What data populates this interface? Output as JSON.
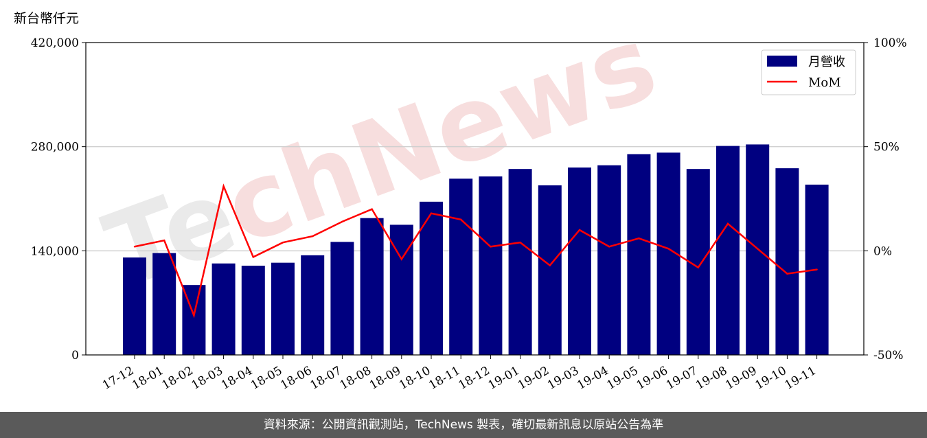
{
  "chart_data": {
    "type": "bar",
    "ylabel": "新台幣仟元",
    "y_ticks": [
      "0",
      "140,000",
      "280,000",
      "420,000"
    ],
    "y2_ticks": [
      "-50%",
      "0%",
      "50%",
      "100%"
    ],
    "ylim": [
      0,
      420000
    ],
    "y2lim": [
      -50,
      100
    ],
    "grid": "y",
    "legend_position": "top-right",
    "categories": [
      "17-12",
      "18-01",
      "18-02",
      "18-03",
      "18-04",
      "18-05",
      "18-06",
      "18-07",
      "18-08",
      "18-09",
      "18-10",
      "18-11",
      "18-12",
      "19-01",
      "19-02",
      "19-03",
      "19-04",
      "19-05",
      "19-06",
      "19-07",
      "19-08",
      "19-09",
      "19-10",
      "19-11"
    ],
    "series": [
      {
        "name": "月營收",
        "type": "bar",
        "axis": "left",
        "color": "#000080",
        "values": [
          131000,
          137000,
          94000,
          123000,
          120000,
          124000,
          134000,
          152000,
          184000,
          175000,
          206000,
          237000,
          240000,
          250000,
          228000,
          252000,
          255000,
          270000,
          272000,
          250000,
          281000,
          283000,
          251000,
          229000
        ]
      },
      {
        "name": "MoM",
        "type": "line",
        "axis": "right",
        "color": "#ff0000",
        "values": [
          2,
          5,
          -31,
          31,
          -3,
          4,
          7,
          14,
          20,
          -4,
          18,
          15,
          2,
          4,
          -7,
          10,
          2,
          6,
          1,
          -8,
          13,
          1,
          -11,
          -9
        ]
      }
    ]
  },
  "watermark": "TechNews",
  "footer": {
    "text": "資料來源：公開資訊觀測站，TechNews 製表，確切最新訊息以原站公告為準"
  }
}
